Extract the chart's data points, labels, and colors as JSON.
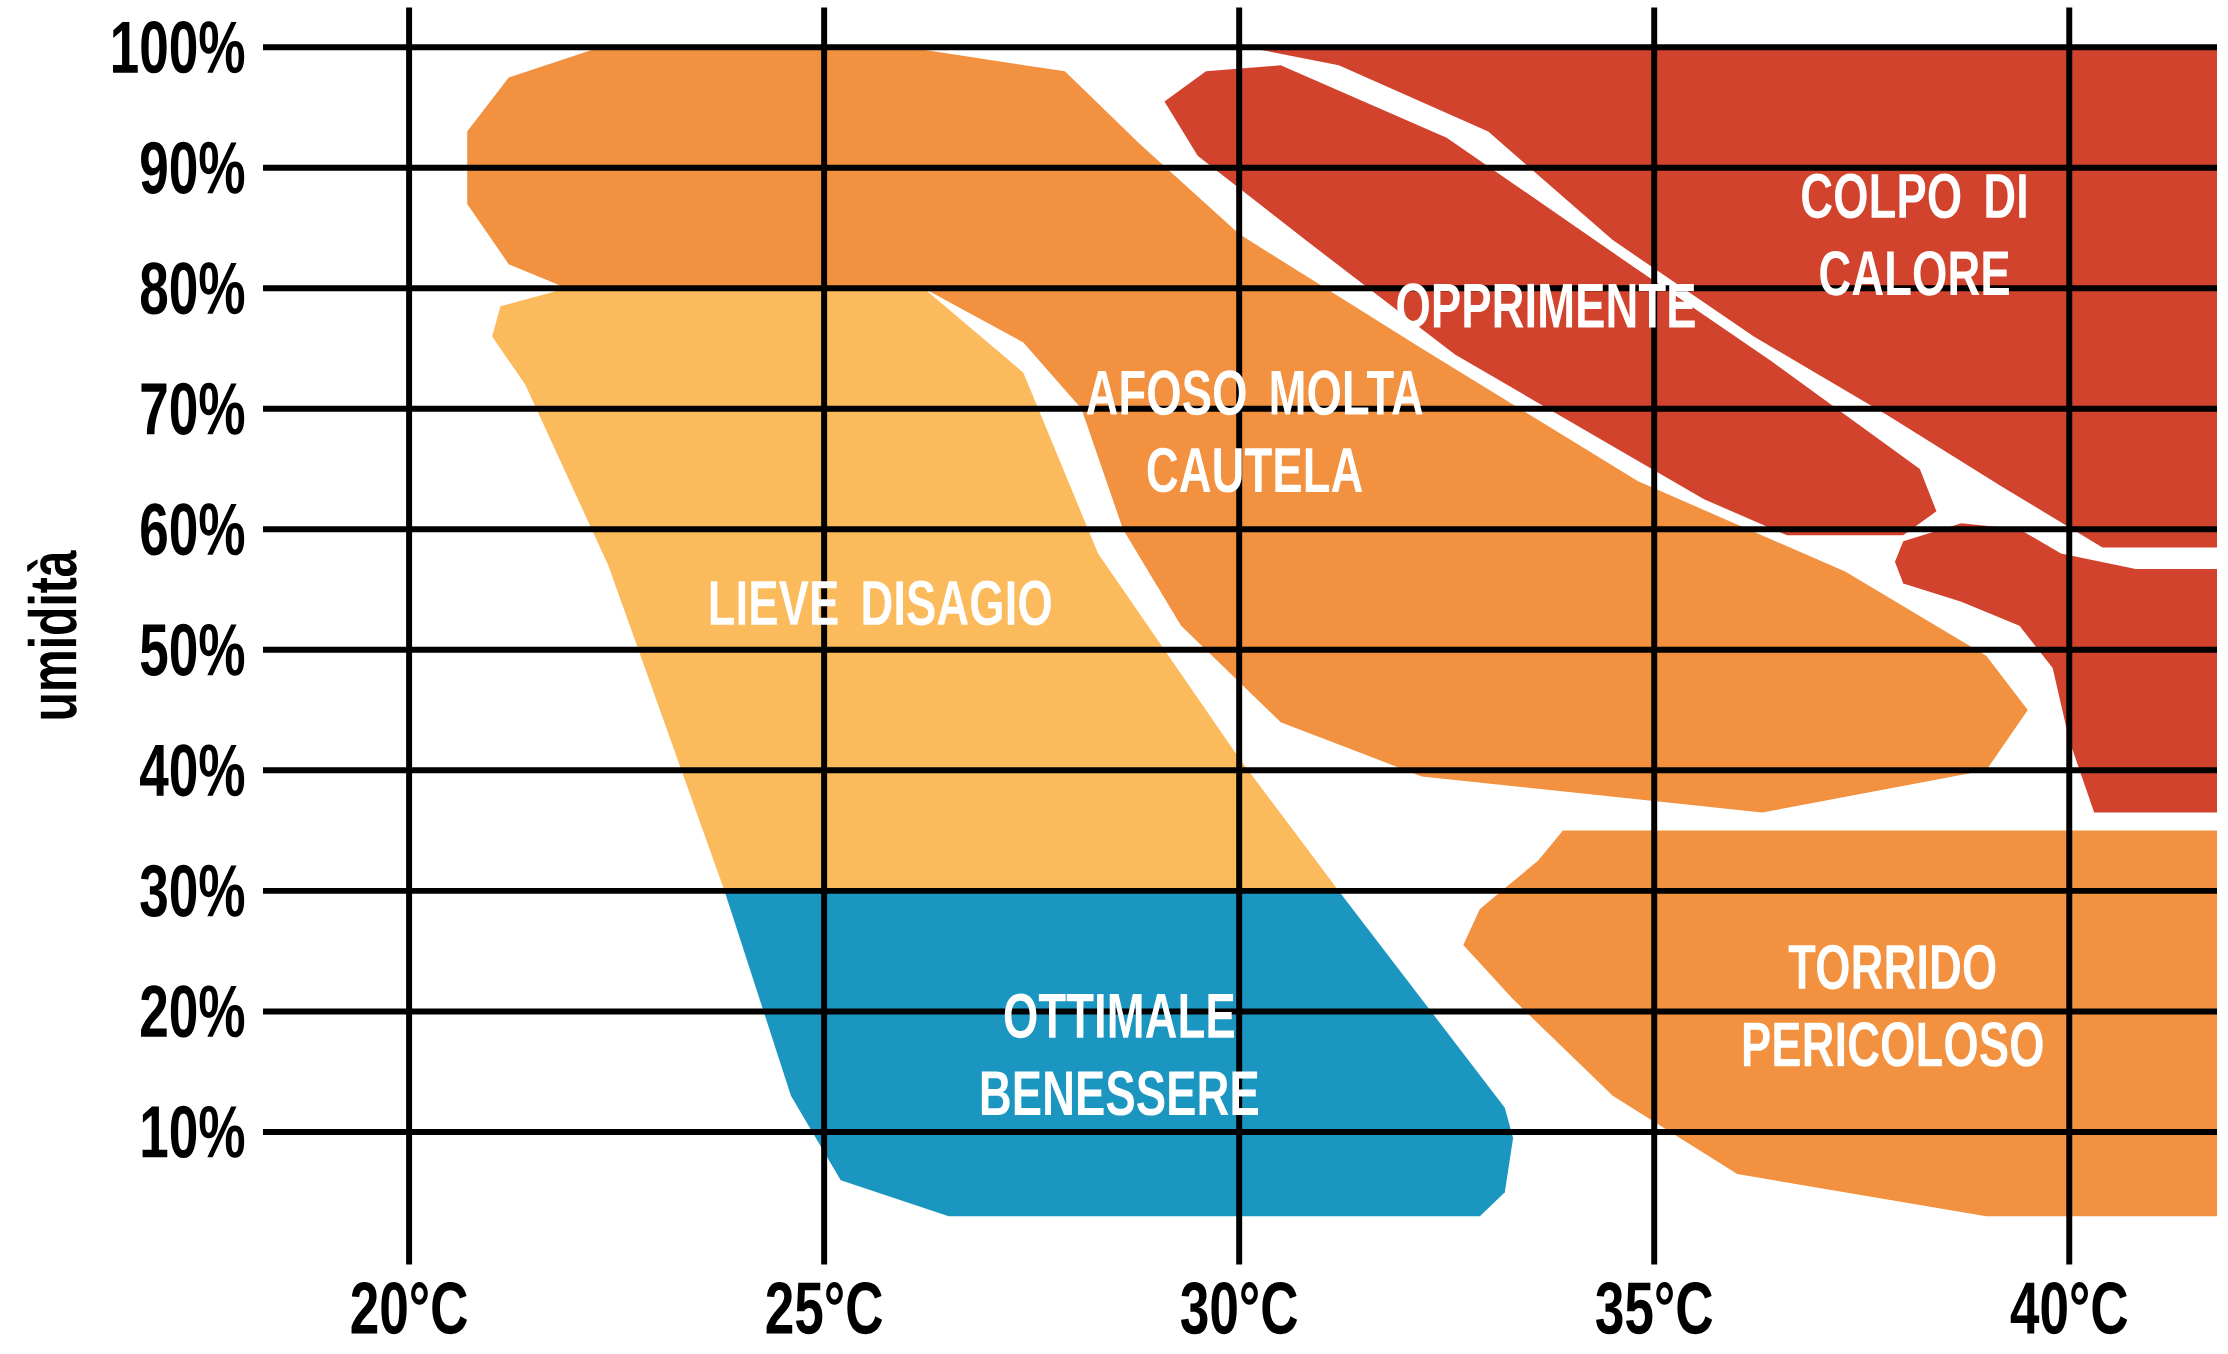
{
  "chart_data": {
    "type": "area",
    "ylabel": "umidità",
    "xlim": [
      18.24,
      41.78
    ],
    "ylim": [
      -1,
      103.3
    ],
    "xticks": [
      {
        "value": 20,
        "label": "20°C"
      },
      {
        "value": 25,
        "label": "25°C"
      },
      {
        "value": 30,
        "label": "30°C"
      },
      {
        "value": 35,
        "label": "35°C"
      },
      {
        "value": 40,
        "label": "40°C"
      }
    ],
    "yticks": [
      {
        "value": 10,
        "label": "10%"
      },
      {
        "value": 20,
        "label": "20%"
      },
      {
        "value": 30,
        "label": "30%"
      },
      {
        "value": 40,
        "label": "40%"
      },
      {
        "value": 50,
        "label": "50%"
      },
      {
        "value": 60,
        "label": "60%"
      },
      {
        "value": 70,
        "label": "70%"
      },
      {
        "value": 80,
        "label": "80%"
      },
      {
        "value": 90,
        "label": "90%"
      },
      {
        "value": 100,
        "label": "100%"
      }
    ],
    "grid": true,
    "series": [
      {
        "name": "AFOSO MOLTA CAUTELA",
        "color": "#f2913f",
        "x": [
          21.9,
          21.2,
          20.7,
          20.7,
          21.2,
          22.3,
          26,
          27.9,
          28.8,
          30,
          32.2,
          34.8,
          37.3,
          39,
          39.5,
          39,
          36.3,
          32.2,
          30.5,
          29.3,
          28.6,
          28.1,
          27.4,
          26.2
        ],
        "values": [
          80,
          82,
          87,
          93,
          97.5,
          100,
          100,
          98,
          92,
          84.5,
          75,
          64,
          56.5,
          49.5,
          45,
          40,
          36.5,
          39.5,
          44,
          52,
          60,
          70,
          75.5,
          80
        ]
      },
      {
        "name": "LIEVE DISAGIO",
        "color": "#fbbb5c",
        "x": [
          23.8,
          22.4,
          21.4,
          21.0,
          21.1,
          21.9,
          26.2,
          27.4,
          28.3,
          30.0,
          31.2
        ],
        "values": [
          30,
          57,
          72,
          76,
          78.5,
          80,
          80,
          73,
          58,
          41,
          30
        ]
      },
      {
        "name": "OTTIMALE BENESSERE",
        "color": "#1a96c0",
        "x": [
          23.8,
          31.2,
          33.2,
          33.3,
          33.2,
          32.9,
          26.5,
          25.2,
          24.6
        ],
        "values": [
          30,
          30,
          12,
          9.5,
          5,
          3,
          3,
          6,
          13
        ]
      },
      {
        "name": "OPPRIMENTE",
        "color": "#d2432e",
        "x": [
          29.1,
          29.6,
          30.5,
          32.5,
          34.6,
          36.4,
          38.2,
          38.4,
          38,
          36.6,
          35.6,
          32.6,
          30.8,
          29.5
        ],
        "values": [
          95.5,
          98,
          98.5,
          92.5,
          82.5,
          74,
          65,
          61.5,
          59.5,
          59.5,
          62.5,
          74.5,
          84,
          91
        ]
      },
      {
        "name": "COLPO DI CALORE",
        "color": "#d2432e",
        "x": [
          30.1,
          41.78,
          41.78,
          40.4,
          39.2,
          37.8,
          36.2,
          34.5,
          33,
          31.2
        ],
        "values": [
          100,
          100,
          58.5,
          58.5,
          63.5,
          69.5,
          76,
          84,
          93,
          98.5
        ]
      },
      {
        "color": "#d2432e",
        "x": [
          38,
          38.7,
          39.4,
          39.9,
          40.8,
          41.78,
          41.78,
          40.3,
          40,
          39.8,
          39.4,
          38.7,
          38,
          37.9
        ],
        "values": [
          59,
          60.5,
          60,
          58,
          56.7,
          56.7,
          36.5,
          36.5,
          42.5,
          48.5,
          52,
          54,
          55.5,
          57.3
        ]
      },
      {
        "name": "TORRIDO PERICOLOSO",
        "color": "#f2913f",
        "x": [
          33.9,
          41.78,
          41.78,
          39,
          36,
          34.5,
          33.3,
          32.7,
          32.9,
          33.6
        ],
        "values": [
          35,
          35,
          3,
          3,
          6.5,
          13,
          21,
          25.5,
          28.5,
          32.5
        ]
      }
    ]
  }
}
